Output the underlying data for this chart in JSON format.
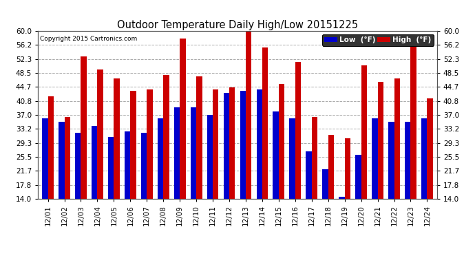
{
  "title": "Outdoor Temperature Daily High/Low 20151225",
  "copyright": "Copyright 2015 Cartronics.com",
  "dates": [
    "12/01",
    "12/02",
    "12/03",
    "12/04",
    "12/05",
    "12/06",
    "12/07",
    "12/08",
    "12/09",
    "12/10",
    "12/11",
    "12/12",
    "12/13",
    "12/14",
    "12/15",
    "12/16",
    "12/17",
    "12/18",
    "12/19",
    "12/20",
    "12/21",
    "12/22",
    "12/23",
    "12/24"
  ],
  "low": [
    36.0,
    35.0,
    32.0,
    34.0,
    31.0,
    32.5,
    32.0,
    36.0,
    39.0,
    39.0,
    37.0,
    43.0,
    43.5,
    44.0,
    38.0,
    36.0,
    27.0,
    22.0,
    14.5,
    26.0,
    36.0,
    35.0,
    35.0,
    36.0
  ],
  "high": [
    42.0,
    36.5,
    53.0,
    49.5,
    47.0,
    43.5,
    44.0,
    48.0,
    58.0,
    47.5,
    44.0,
    44.5,
    60.0,
    55.5,
    45.5,
    51.5,
    36.5,
    31.5,
    30.5,
    50.5,
    46.0,
    47.0,
    57.5,
    41.5
  ],
  "low_color": "#0000cc",
  "high_color": "#cc0000",
  "ylim": [
    14.0,
    60.0
  ],
  "yticks": [
    14.0,
    17.8,
    21.7,
    25.5,
    29.3,
    33.2,
    37.0,
    40.8,
    44.7,
    48.5,
    52.3,
    56.2,
    60.0
  ],
  "bg_color": "#ffffff",
  "grid_color": "#aaaaaa",
  "bar_width": 0.35,
  "legend_low_label": "Low  (°F)",
  "legend_high_label": "High  (°F)",
  "figsize": [
    6.9,
    3.75
  ],
  "dpi": 100
}
